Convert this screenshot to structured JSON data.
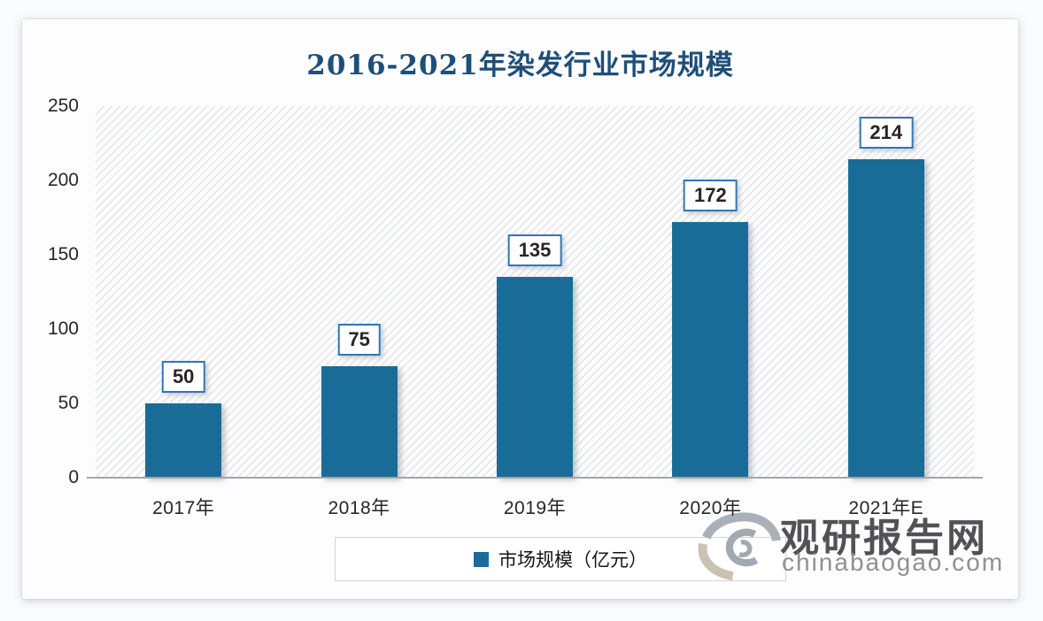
{
  "chart_data": {
    "type": "bar",
    "title": "2016-2021年染发行业市场规模",
    "categories": [
      "2017年",
      "2018年",
      "2019年",
      "2020年",
      "2021年E"
    ],
    "series": [
      {
        "name": "市场规模（亿元）",
        "values": [
          50,
          75,
          135,
          172,
          214
        ]
      }
    ],
    "data_labels": [
      "50",
      "75",
      "135",
      "172",
      "214"
    ],
    "xlabel": "",
    "ylabel": "",
    "ylim": [
      0,
      250
    ],
    "yticks": [
      0,
      50,
      100,
      150,
      200,
      250
    ],
    "grid": false,
    "legend_position": "bottom-center",
    "plot_background": "diagonal-hatch",
    "colors": {
      "bar": "#1a6c98",
      "title": "#1f4e79",
      "label_box_border": "#2e75b6",
      "label_text": "#2b2326",
      "axis_text": "#262626",
      "axis_line": "#a4a6ac"
    }
  },
  "legend": {
    "marker": "square",
    "label": "市场规模（亿元）"
  },
  "watermark": {
    "logo": "swirl-logo",
    "site_name": "观研报告网",
    "site_url": "chinabaogao.com"
  }
}
